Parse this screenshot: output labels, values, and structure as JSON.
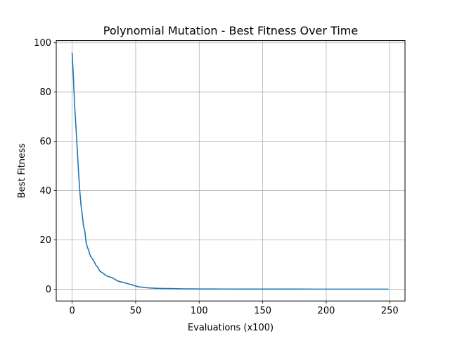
{
  "chart_data": {
    "type": "line",
    "title": "Polynomial Mutation - Best Fitness Over Time",
    "xlabel": "Evaluations (x100)",
    "ylabel": "Best Fitness",
    "xlim": [
      -12.5,
      262
    ],
    "ylim": [
      -4.8,
      100.9
    ],
    "xticks": [
      0,
      50,
      100,
      150,
      200,
      250
    ],
    "yticks": [
      0,
      20,
      40,
      60,
      80,
      100
    ],
    "grid": true,
    "legend": "none",
    "colors": {
      "line": "#1f77b4",
      "grid": "#b0b0b0",
      "axes": "#000000"
    },
    "series": [
      {
        "x": [
          0,
          1,
          2,
          3,
          4,
          5,
          6,
          7,
          8,
          9,
          10,
          11,
          12,
          13,
          14,
          15,
          16,
          17,
          18,
          19,
          20,
          22,
          24,
          26,
          28,
          30,
          32,
          34,
          36,
          38,
          40,
          42,
          44,
          46,
          48,
          50,
          52,
          55,
          58,
          62,
          66,
          70,
          75,
          80,
          85,
          90,
          95,
          100,
          110,
          120,
          130,
          140,
          150,
          160,
          170,
          180,
          190,
          200,
          210,
          220,
          230,
          240,
          249
        ],
        "y": [
          96,
          86,
          74,
          66,
          57,
          48,
          40,
          34,
          30,
          25.5,
          23.5,
          19,
          17,
          15.8,
          14,
          13,
          12.3,
          11.5,
          10.5,
          9.5,
          9,
          7.2,
          6.6,
          5.8,
          5.2,
          4.9,
          4.5,
          3.9,
          3.3,
          3.0,
          2.8,
          2.5,
          2.2,
          1.9,
          1.6,
          1.3,
          1.0,
          0.8,
          0.6,
          0.45,
          0.35,
          0.3,
          0.25,
          0.2,
          0.15,
          0.12,
          0.1,
          0.08,
          0.06,
          0.05,
          0.04,
          0.03,
          0.03,
          0.02,
          0.02,
          0.02,
          0.01,
          0.01,
          0.01,
          0.01,
          0.01,
          0.01,
          0.01
        ]
      }
    ]
  }
}
